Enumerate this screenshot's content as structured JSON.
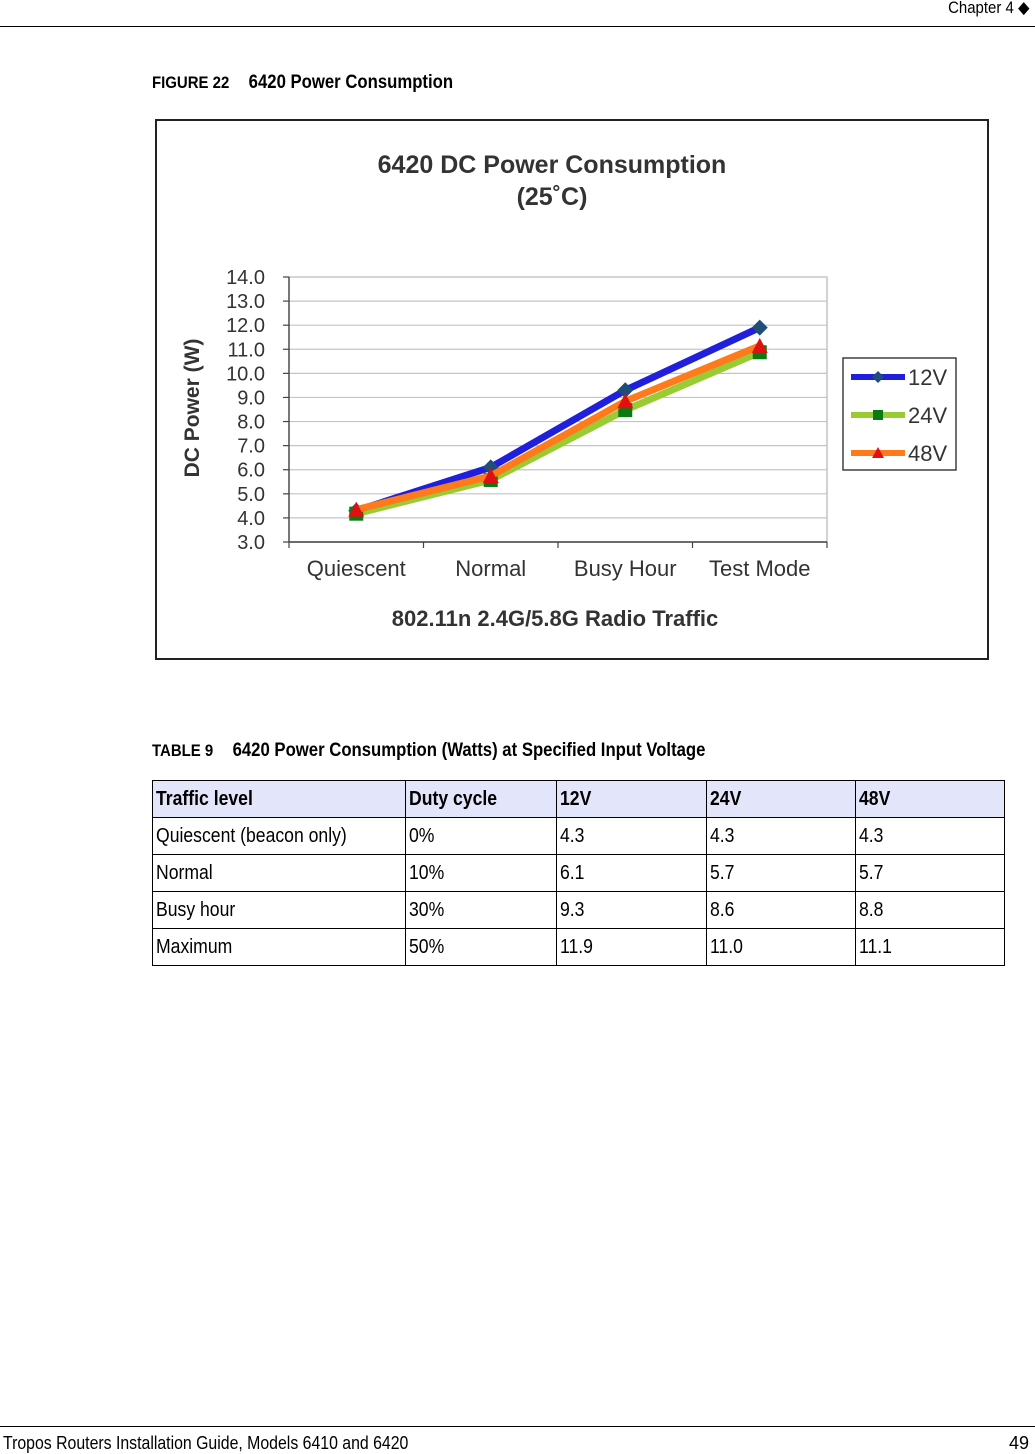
{
  "header": {
    "text": "Chapter 4 ◆"
  },
  "figure": {
    "label": "FIGURE 22",
    "title": "6420 Power Consumption"
  },
  "chart_data": {
    "type": "line",
    "title": "6420 DC Power Consumption",
    "subtitle": "(25˚C)",
    "xlabel": "802.11n 2.4G/5.8G Radio Traffic",
    "ylabel": "DC Power (W)",
    "categories": [
      "Quiescent",
      "Normal",
      "Busy Hour",
      "Test Mode"
    ],
    "ylim": [
      3.0,
      14.0
    ],
    "yticks": [
      "14.0",
      "13.0",
      "12.0",
      "11.0",
      "10.0",
      "9.0",
      "8.0",
      "7.0",
      "6.0",
      "5.0",
      "4.0",
      "3.0"
    ],
    "grid": true,
    "legend_position": "right",
    "series": [
      {
        "name": "12V",
        "values": [
          4.3,
          6.1,
          9.3,
          11.9
        ],
        "color": "#1f1fdc",
        "marker": "diamond",
        "marker_color": "#1f4e79"
      },
      {
        "name": "24V",
        "values": [
          4.3,
          5.7,
          8.6,
          11.0
        ],
        "color": "#99cc33",
        "marker": "square",
        "marker_color": "#0a7a12"
      },
      {
        "name": "48V",
        "values": [
          4.3,
          5.7,
          8.8,
          11.1
        ],
        "color": "#ff7a1a",
        "marker": "triangle",
        "marker_color": "#e01010"
      }
    ]
  },
  "table": {
    "label": "TABLE 9",
    "title": "6420 Power Consumption (Watts) at Specified Input Voltage",
    "headers": [
      "Traffic level",
      "Duty cycle",
      "12V",
      "24V",
      "48V"
    ],
    "rows": [
      [
        "Quiescent (beacon only)",
        "0%",
        "4.3",
        "4.3",
        "4.3"
      ],
      [
        "Normal",
        "10%",
        "6.1",
        "5.7",
        "5.7"
      ],
      [
        "Busy hour",
        "30%",
        "9.3",
        "8.6",
        "8.8"
      ],
      [
        "Maximum",
        "50%",
        "11.9",
        "11.0",
        "11.1"
      ]
    ]
  },
  "footer": {
    "title": "Tropos Routers Installation Guide, Models 6410 and 6420",
    "page_number": "49"
  }
}
